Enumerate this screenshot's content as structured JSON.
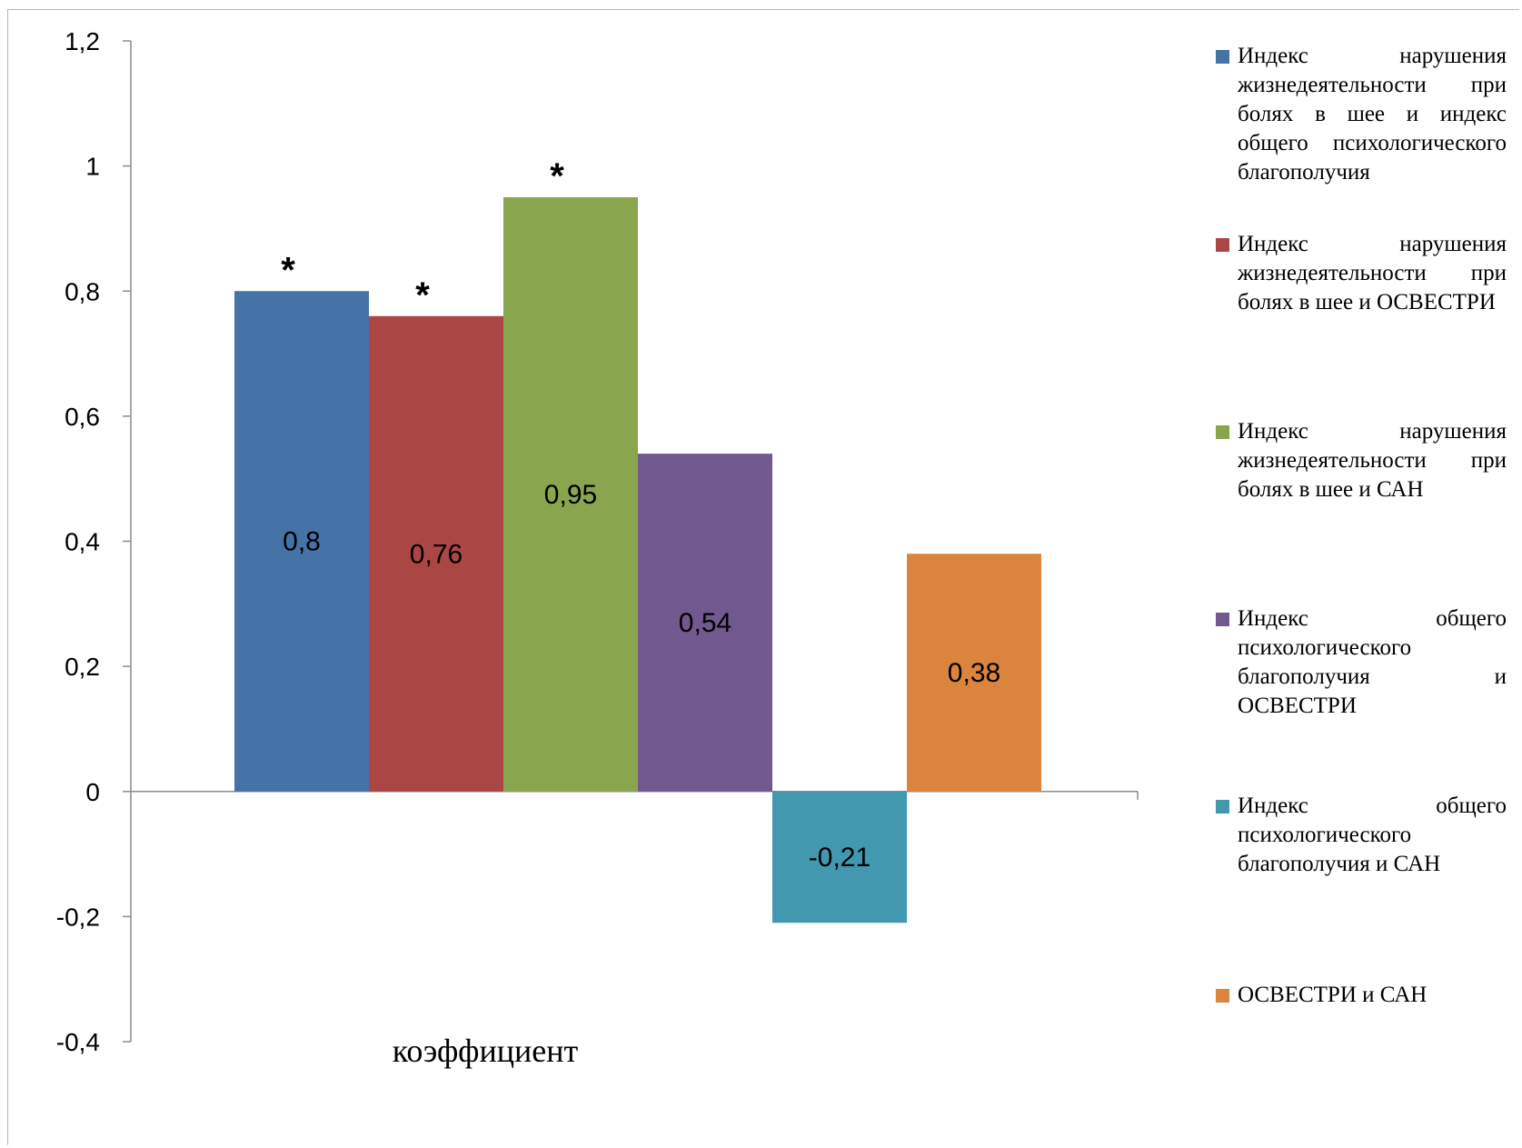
{
  "chart_data": {
    "type": "bar",
    "categories": [
      "коэффициент"
    ],
    "xlabel": "коэффициент",
    "ylabel": "",
    "title": "",
    "ylim": [
      -0.4,
      1.2
    ],
    "yticks": [
      "1,2",
      "1",
      "0,8",
      "0,6",
      "0,4",
      "0,2",
      "0",
      "-0,2",
      "-0,4"
    ],
    "ytick_values": [
      1.2,
      1.0,
      0.8,
      0.6,
      0.4,
      0.2,
      0.0,
      -0.2,
      -0.4
    ],
    "grid": false,
    "legend_position": "right",
    "series": [
      {
        "name": "Индекс нарушения жизнедеятельности при болях в шее и индекс общего психологического благополучия",
        "values": [
          0.8
        ],
        "label": "0,8",
        "color": "#4572a7",
        "marker": "*"
      },
      {
        "name": "Индекс нарушения жизнедеятельности при болях в шее и ОСВЕСТРИ",
        "values": [
          0.76
        ],
        "label": "0,76",
        "color": "#aa4643",
        "marker": "*"
      },
      {
        "name": "Индекс нарушения жизнедеятельности при болях в шее и САН",
        "values": [
          0.95
        ],
        "label": "0,95",
        "color": "#89a54e",
        "marker": "*"
      },
      {
        "name": "Индекс общего психологического благополучия и ОСВЕСТРИ",
        "values": [
          0.54
        ],
        "label": "0,54",
        "color": "#71588f",
        "marker": ""
      },
      {
        "name": "Индекс общего психологического благополучия и САН",
        "values": [
          -0.21
        ],
        "label": "-0,21",
        "color": "#4198af",
        "marker": ""
      },
      {
        "name": "ОСВЕСТРИ и САН",
        "values": [
          0.38
        ],
        "label": "0,38",
        "color": "#db843d",
        "marker": ""
      }
    ]
  }
}
